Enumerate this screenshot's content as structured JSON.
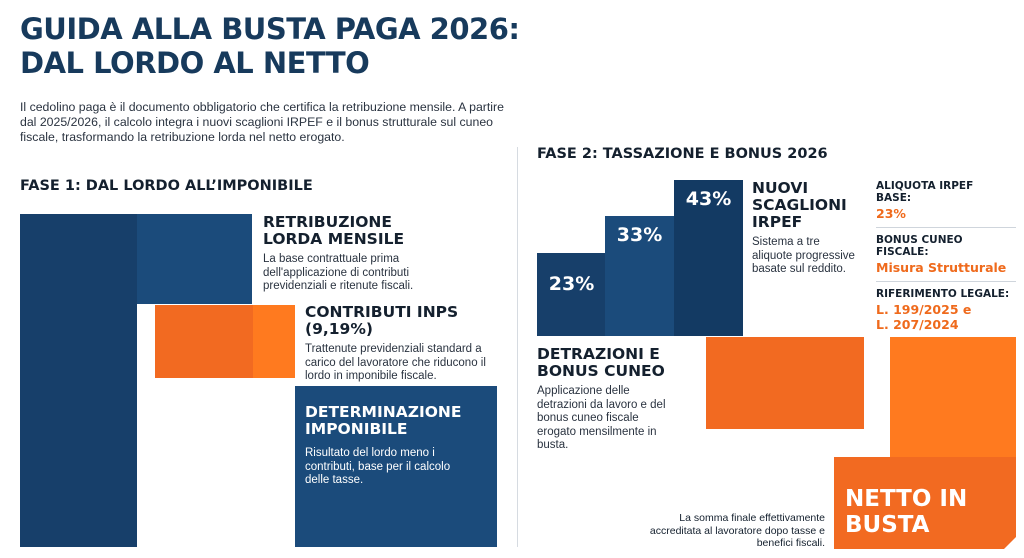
{
  "header": {
    "title_line1": "GUIDA ALLA BUSTA PAGA 2026:",
    "title_line2": "DAL LORDO AL NETTO",
    "intro": "Il cedolino paga è il documento obbligatorio che certifica la retribuzione mensile. A partire dal 2025/2026, il calcolo integra i nuovi scaglioni IRPEF e il bonus strutturale sul cuneo fiscale, trasformando la retribuzione lorda nel netto erogato."
  },
  "phase1": {
    "heading": "FASE 1: DAL LORDO ALL’IMPONIBILE",
    "steps": [
      {
        "title": "RETRIBUZIONE LORDA MENSILE",
        "text": "La base contrattuale prima dell'applicazione di contributi previdenziali e ritenute fiscali."
      },
      {
        "title": "CONTRIBUTI INPS (9,19%)",
        "text": "Trattenute previdenziali standard a carico del lavoratore che riducono il lordo in imponibile fiscale."
      },
      {
        "title": "DETERMINAZIONE IMPONIBILE",
        "text": "Risultato del lordo meno i contributi, base per il calcolo delle tasse."
      }
    ]
  },
  "phase2": {
    "heading": "FASE 2: TASSAZIONE E BONUS 2026",
    "brackets": [
      {
        "label": "23%",
        "value": 23
      },
      {
        "label": "33%",
        "value": 33
      },
      {
        "label": "43%",
        "value": 43
      }
    ],
    "brackets_title": "NUOVI SCAGLIONI IRPEF",
    "brackets_text": "Sistema a tre aliquote progressive basate sul reddito.",
    "deductions_title": "DETRAZIONI E BONUS CUNEO",
    "deductions_text": "Applicazione delle detrazioni da lavoro e del bonus cuneo fiscale erogato mensilmente in busta.",
    "info": [
      {
        "label": "ALIQUOTA IRPEF BASE:",
        "value": "23%"
      },
      {
        "label": "BONUS CUNEO FISCALE:",
        "value": "Misura Strutturale"
      },
      {
        "label": "RIFERIMENTO LEGALE:",
        "value": "L. 199/2025 e L. 207/2024"
      }
    ],
    "net_title": "NETTO IN BUSTA",
    "net_text": "La somma finale effettivamente accreditata al lavoratore dopo tasse e benefici fiscali."
  },
  "colors": {
    "navy": "#173f6a",
    "navy_light": "#1b4b7b",
    "orange": "#f26a21",
    "title": "#173a5c"
  },
  "chart_data": {
    "type": "bar",
    "categories": [
      "23%",
      "33%",
      "43%"
    ],
    "values": [
      23,
      33,
      43
    ],
    "title": "",
    "xlabel": "",
    "ylabel": ""
  }
}
